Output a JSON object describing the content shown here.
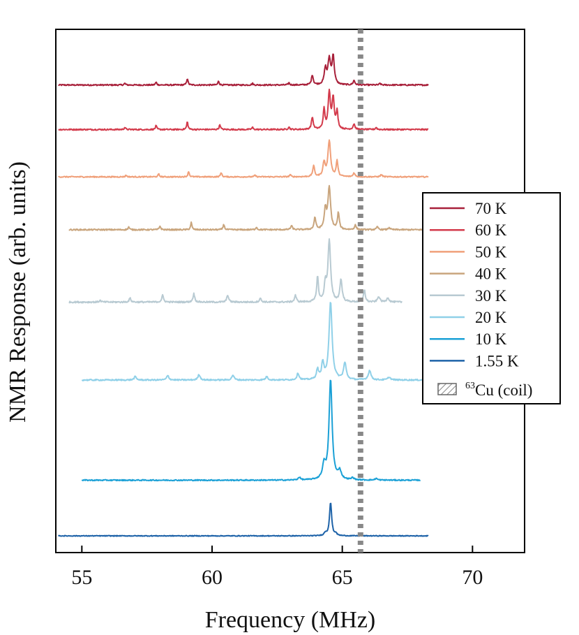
{
  "chart_data": {
    "type": "line",
    "title": "",
    "xlabel": "Frequency (MHz)",
    "ylabel": "NMR Response (arb. units)",
    "xlim": [
      54,
      72
    ],
    "xticks": [
      55,
      60,
      65,
      70
    ],
    "y_units": "arb. units (traces vertically offset)",
    "ylim": [
      -0.3,
      9.1
    ],
    "grid": false,
    "legend_position": "right",
    "coil_marker": {
      "label_sup": "63",
      "label_main": "Cu (coil)",
      "frequency_mhz": 65.7,
      "color": "#888888"
    },
    "series": [
      {
        "name": "70 K",
        "color": "#a8203a",
        "offset": 8.1,
        "x_range": [
          54.1,
          68.3
        ],
        "noise": 0.012,
        "peaks": [
          [
            64.5,
            0.45,
            0.06
          ],
          [
            64.65,
            0.5,
            0.05
          ],
          [
            64.35,
            0.28,
            0.05
          ],
          [
            63.85,
            0.18,
            0.04
          ],
          [
            65.45,
            0.08,
            0.04
          ],
          [
            59.05,
            0.12,
            0.03
          ],
          [
            60.25,
            0.07,
            0.03
          ],
          [
            57.85,
            0.05,
            0.03
          ],
          [
            56.65,
            0.03,
            0.03
          ],
          [
            61.55,
            0.03,
            0.03
          ],
          [
            62.95,
            0.04,
            0.03
          ],
          [
            66.45,
            0.03,
            0.03
          ]
        ]
      },
      {
        "name": "60 K",
        "color": "#d33a4b",
        "offset": 7.3,
        "x_range": [
          54.1,
          68.3
        ],
        "noise": 0.012,
        "peaks": [
          [
            64.5,
            0.65,
            0.05
          ],
          [
            64.65,
            0.55,
            0.05
          ],
          [
            64.3,
            0.35,
            0.04
          ],
          [
            64.8,
            0.3,
            0.04
          ],
          [
            63.85,
            0.22,
            0.04
          ],
          [
            65.45,
            0.1,
            0.04
          ],
          [
            59.05,
            0.14,
            0.03
          ],
          [
            60.3,
            0.09,
            0.03
          ],
          [
            57.85,
            0.07,
            0.03
          ],
          [
            56.65,
            0.04,
            0.03
          ],
          [
            61.55,
            0.04,
            0.03
          ],
          [
            62.95,
            0.05,
            0.03
          ],
          [
            66.3,
            0.04,
            0.03
          ]
        ]
      },
      {
        "name": "50 K",
        "color": "#f0a07a",
        "offset": 6.45,
        "x_range": [
          54.1,
          68.3
        ],
        "noise": 0.01,
        "peaks": [
          [
            64.5,
            0.65,
            0.06
          ],
          [
            64.3,
            0.25,
            0.05
          ],
          [
            64.8,
            0.28,
            0.04
          ],
          [
            63.9,
            0.2,
            0.04
          ],
          [
            65.45,
            0.07,
            0.04
          ],
          [
            59.1,
            0.1,
            0.03
          ],
          [
            60.35,
            0.08,
            0.03
          ],
          [
            57.95,
            0.05,
            0.03
          ],
          [
            56.7,
            0.03,
            0.03
          ],
          [
            61.65,
            0.03,
            0.03
          ],
          [
            63.0,
            0.04,
            0.03
          ],
          [
            66.5,
            0.04,
            0.04
          ]
        ]
      },
      {
        "name": "40 K",
        "color": "#c9a57d",
        "offset": 5.5,
        "x_range": [
          54.5,
          68.3
        ],
        "noise": 0.012,
        "peaks": [
          [
            64.5,
            0.75,
            0.06
          ],
          [
            64.35,
            0.35,
            0.05
          ],
          [
            64.85,
            0.3,
            0.04
          ],
          [
            63.95,
            0.22,
            0.04
          ],
          [
            65.5,
            0.08,
            0.04
          ],
          [
            59.2,
            0.13,
            0.03
          ],
          [
            60.45,
            0.1,
            0.03
          ],
          [
            58.0,
            0.07,
            0.03
          ],
          [
            56.8,
            0.05,
            0.03
          ],
          [
            61.7,
            0.05,
            0.03
          ],
          [
            63.05,
            0.07,
            0.04
          ],
          [
            66.35,
            0.05,
            0.04
          ],
          [
            66.8,
            0.04,
            0.04
          ]
        ]
      },
      {
        "name": "30 K",
        "color": "#b8cad2",
        "offset": 4.2,
        "x_range": [
          54.5,
          67.3
        ],
        "noise": 0.014,
        "peaks": [
          [
            64.5,
            1.1,
            0.06
          ],
          [
            64.35,
            0.3,
            0.05
          ],
          [
            64.05,
            0.45,
            0.04
          ],
          [
            64.95,
            0.4,
            0.05
          ],
          [
            65.85,
            0.22,
            0.04
          ],
          [
            63.2,
            0.12,
            0.04
          ],
          [
            59.3,
            0.15,
            0.04
          ],
          [
            60.6,
            0.13,
            0.04
          ],
          [
            58.1,
            0.12,
            0.04
          ],
          [
            56.85,
            0.07,
            0.04
          ],
          [
            61.85,
            0.07,
            0.04
          ],
          [
            55.7,
            0.03,
            0.04
          ],
          [
            66.4,
            0.1,
            0.05
          ],
          [
            66.75,
            0.08,
            0.05
          ]
        ]
      },
      {
        "name": "20 K",
        "color": "#8fd0e8",
        "offset": 2.8,
        "x_range": [
          55.0,
          68.3
        ],
        "noise": 0.012,
        "peaks": [
          [
            64.55,
            1.4,
            0.07
          ],
          [
            64.25,
            0.3,
            0.05
          ],
          [
            64.05,
            0.18,
            0.05
          ],
          [
            65.1,
            0.3,
            0.06
          ],
          [
            66.05,
            0.17,
            0.06
          ],
          [
            63.3,
            0.12,
            0.05
          ],
          [
            59.5,
            0.1,
            0.05
          ],
          [
            60.8,
            0.09,
            0.05
          ],
          [
            58.3,
            0.08,
            0.05
          ],
          [
            57.05,
            0.06,
            0.05
          ],
          [
            62.1,
            0.06,
            0.05
          ],
          [
            66.8,
            0.05,
            0.06
          ]
        ]
      },
      {
        "name": "10 K",
        "color": "#1aa0d6",
        "offset": 1.0,
        "x_range": [
          55.0,
          68.0
        ],
        "noise": 0.01,
        "peaks": [
          [
            64.55,
            1.8,
            0.07
          ],
          [
            64.3,
            0.25,
            0.07
          ],
          [
            64.9,
            0.15,
            0.07
          ],
          [
            63.35,
            0.05,
            0.05
          ],
          [
            65.4,
            0.04,
            0.05
          ],
          [
            66.3,
            0.03,
            0.05
          ]
        ]
      },
      {
        "name": "1.55 K",
        "color": "#1d62a8",
        "offset": 0.0,
        "x_range": [
          54.1,
          68.3
        ],
        "noise": 0.007,
        "peaks": [
          [
            64.55,
            0.6,
            0.05
          ],
          [
            64.35,
            0.05,
            0.05
          ],
          [
            64.75,
            0.04,
            0.04
          ]
        ]
      }
    ]
  }
}
